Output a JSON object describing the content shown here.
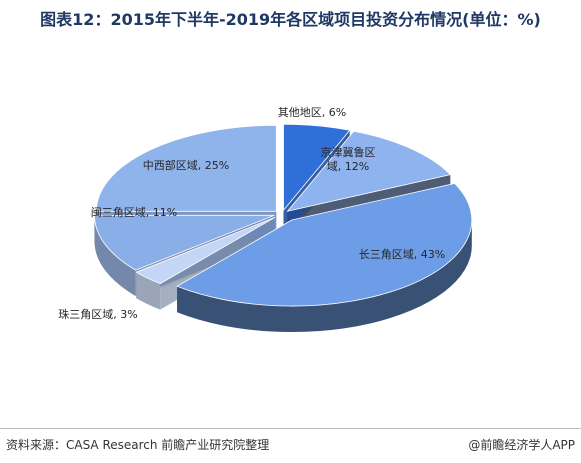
{
  "title": "图表12：2015年下半年-2019年各区域项目投资分布情况(单位：%)",
  "footer": {
    "source": "资料来源：CASA Research 前瞻产业研究院整理",
    "brand": "@前瞻经济学人APP"
  },
  "colors": {
    "background": "#ffffff",
    "title": "#1f3864"
  },
  "chart_data": {
    "type": "pie",
    "style": "3d-exploded",
    "categories": [
      "其他地区",
      "京津冀鲁区域",
      "长三角区域",
      "珠三角区域",
      "闽三角区域",
      "中西部区域"
    ],
    "values": [
      6,
      12,
      43,
      3,
      11,
      25
    ],
    "unit": "%",
    "labels": [
      {
        "lines": [
          "其他地区, 6%"
        ]
      },
      {
        "lines": [
          "京津冀鲁区",
          "域, 12%"
        ]
      },
      {
        "lines": [
          "长三角区域, 43%"
        ]
      },
      {
        "lines": [
          "珠三角区域, 3%"
        ]
      },
      {
        "lines": [
          "闽三角区域, 11%"
        ]
      },
      {
        "lines": [
          "中西部区域, 25%"
        ]
      }
    ],
    "colors": [
      "#2f6fd7",
      "#8fb3ee",
      "#6d9de6",
      "#c3d6f5",
      "#8aaee8",
      "#8fb4ec"
    ],
    "side_colors": [
      "#1f4d99",
      "#3b4a66",
      "#3a5176",
      "#9aa6b8",
      "#7388ab",
      "#6f89b8"
    ],
    "legend": "none"
  }
}
